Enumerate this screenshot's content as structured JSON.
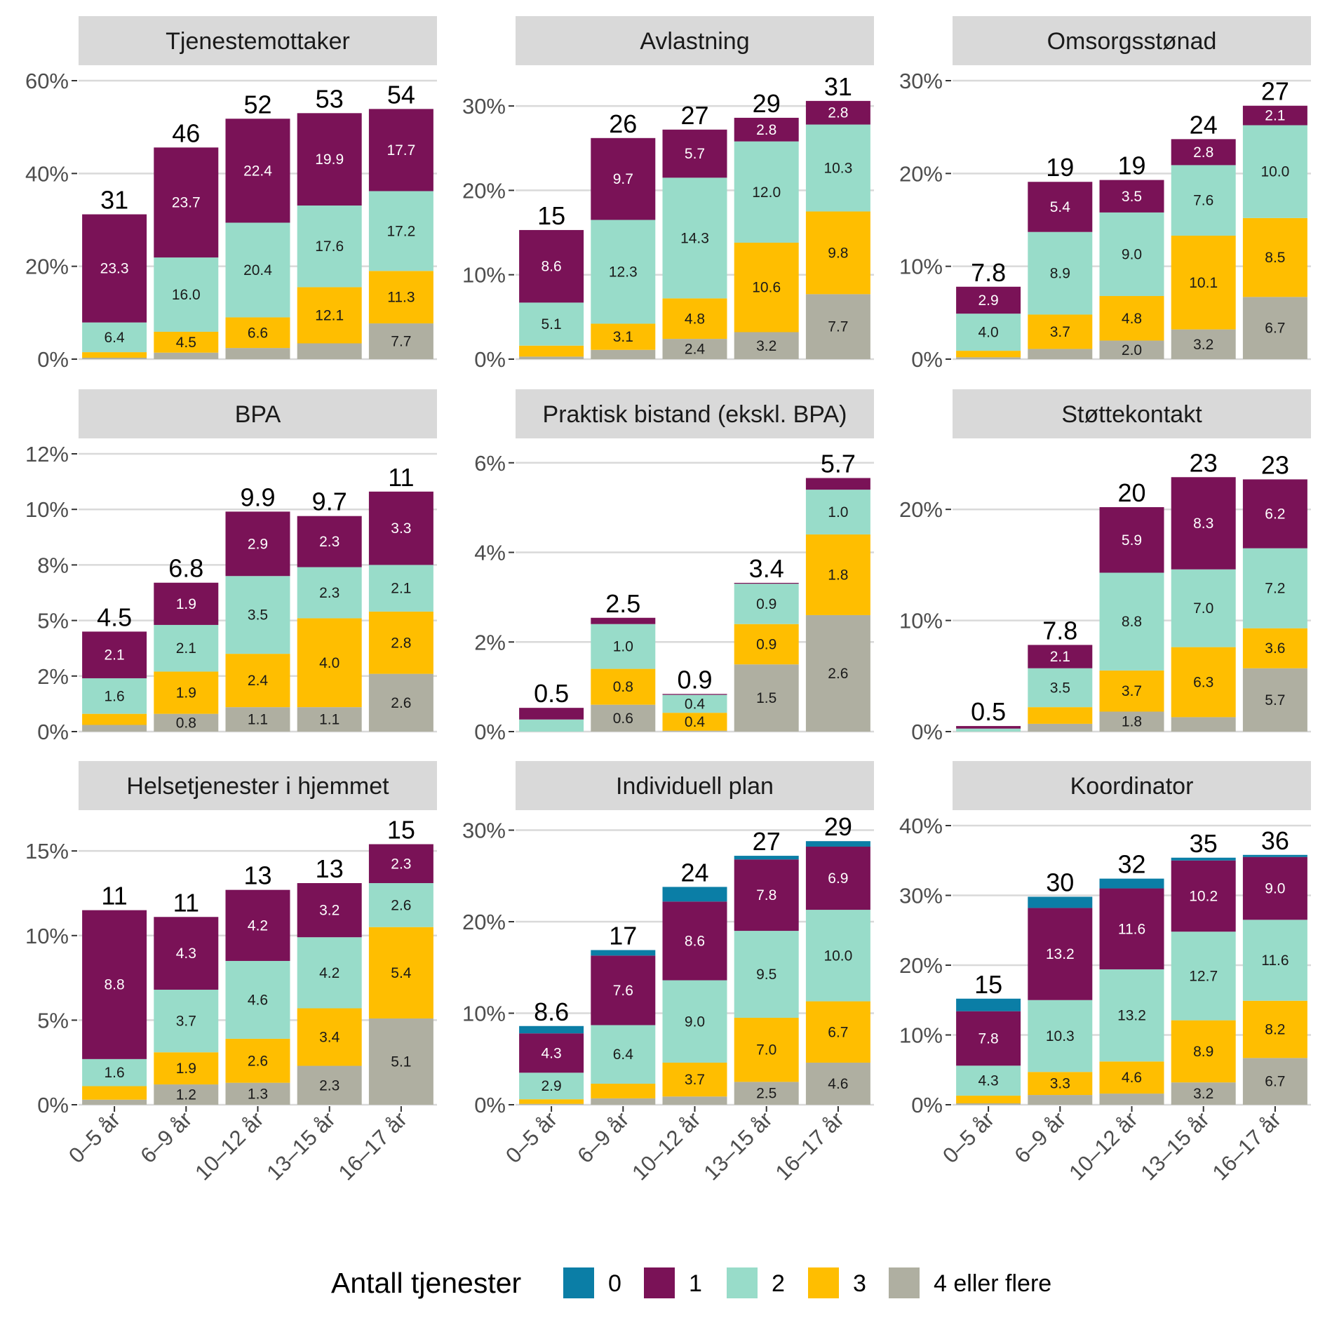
{
  "chart_data": {
    "type": "bar",
    "stacked": true,
    "categories": [
      "0–5 år",
      "6–9 år",
      "10–12 år",
      "13–15 år",
      "16–17 år"
    ],
    "stack_keys": [
      "4",
      "3",
      "2",
      "1",
      "0"
    ],
    "legend": {
      "title": "Antall tjenester",
      "position": "bottom",
      "items": [
        {
          "key": "0",
          "label": "0",
          "color": "#0b7ea6"
        },
        {
          "key": "1",
          "label": "1",
          "color": "#7a1257"
        },
        {
          "key": "2",
          "label": "2",
          "color": "#98dcc9"
        },
        {
          "key": "3",
          "label": "3",
          "color": "#ffbe00"
        },
        {
          "key": "4",
          "label": "4 eller flere",
          "color": "#afafa1"
        }
      ]
    },
    "panels": [
      {
        "title": "Tjenestemottaker",
        "ylim": [
          0,
          60
        ],
        "yticks": [
          0,
          20,
          40,
          60
        ],
        "ytick_labels": [
          "0%",
          "20%",
          "40%",
          "60%"
        ],
        "totals": [
          31,
          46,
          52,
          53,
          54
        ],
        "total_labels": [
          "31",
          "46",
          "52",
          "53",
          "54"
        ],
        "segments": [
          {
            "4": 0.3,
            "3": 1.2,
            "2": 6.4,
            "1": 23.3,
            "0": 0
          },
          {
            "4": 1.4,
            "3": 4.5,
            "2": 16.0,
            "1": 23.7,
            "0": 0
          },
          {
            "4": 2.4,
            "3": 6.6,
            "2": 20.4,
            "1": 22.4,
            "0": 0
          },
          {
            "4": 3.4,
            "3": 12.1,
            "2": 17.6,
            "1": 19.9,
            "0": 0
          },
          {
            "4": 7.7,
            "3": 11.3,
            "2": 17.2,
            "1": 17.7,
            "0": 0
          }
        ],
        "segment_labels": [
          {
            "4": "",
            "3": "",
            "2": "6.4",
            "1": "23.3",
            "0": ""
          },
          {
            "4": "",
            "3": "4.5",
            "2": "16.0",
            "1": "23.7",
            "0": ""
          },
          {
            "4": "",
            "3": "6.6",
            "2": "20.4",
            "1": "22.4",
            "0": ""
          },
          {
            "4": "",
            "3": "12.1",
            "2": "17.6",
            "1": "19.9",
            "0": ""
          },
          {
            "4": "7.7",
            "3": "11.3",
            "2": "17.2",
            "1": "17.7",
            "0": ""
          }
        ]
      },
      {
        "title": "Avlastning",
        "ylim": [
          0,
          33
        ],
        "yticks": [
          0,
          10,
          20,
          30
        ],
        "ytick_labels": [
          "0%",
          "10%",
          "20%",
          "30%"
        ],
        "totals": [
          15,
          26,
          27,
          29,
          31
        ],
        "total_labels": [
          "15",
          "26",
          "27",
          "29",
          "31"
        ],
        "segments": [
          {
            "4": 0.3,
            "3": 1.3,
            "2": 5.1,
            "1": 8.6,
            "0": 0
          },
          {
            "4": 1.1,
            "3": 3.1,
            "2": 12.3,
            "1": 9.7,
            "0": 0
          },
          {
            "4": 2.4,
            "3": 4.8,
            "2": 14.3,
            "1": 5.7,
            "0": 0
          },
          {
            "4": 3.2,
            "3": 10.6,
            "2": 12.0,
            "1": 2.8,
            "0": 0
          },
          {
            "4": 7.7,
            "3": 9.8,
            "2": 10.3,
            "1": 2.8,
            "0": 0
          }
        ],
        "segment_labels": [
          {
            "4": "",
            "3": "",
            "2": "5.1",
            "1": "8.6",
            "0": ""
          },
          {
            "4": "",
            "3": "3.1",
            "2": "12.3",
            "1": "9.7",
            "0": ""
          },
          {
            "4": "2.4",
            "3": "4.8",
            "2": "14.3",
            "1": "5.7",
            "0": ""
          },
          {
            "4": "3.2",
            "3": "10.6",
            "2": "12.0",
            "1": "2.8",
            "0": ""
          },
          {
            "4": "7.7",
            "3": "9.8",
            "2": "10.3",
            "1": "2.8",
            "0": ""
          }
        ]
      },
      {
        "title": "Omsorgsstønad",
        "ylim": [
          0,
          30
        ],
        "yticks": [
          0,
          10,
          20,
          30
        ],
        "ytick_labels": [
          "0%",
          "10%",
          "20%",
          "30%"
        ],
        "totals": [
          7.8,
          19,
          19,
          24,
          27
        ],
        "total_labels": [
          "7.8",
          "19",
          "19",
          "24",
          "27"
        ],
        "segments": [
          {
            "4": 0.2,
            "3": 0.7,
            "2": 4.0,
            "1": 2.9,
            "0": 0
          },
          {
            "4": 1.1,
            "3": 3.7,
            "2": 8.9,
            "1": 5.4,
            "0": 0
          },
          {
            "4": 2.0,
            "3": 4.8,
            "2": 9.0,
            "1": 3.5,
            "0": 0
          },
          {
            "4": 3.2,
            "3": 10.1,
            "2": 7.6,
            "1": 2.8,
            "0": 0
          },
          {
            "4": 6.7,
            "3": 8.5,
            "2": 10.0,
            "1": 2.1,
            "0": 0
          }
        ],
        "segment_labels": [
          {
            "4": "",
            "3": "",
            "2": "4.0",
            "1": "2.9",
            "0": ""
          },
          {
            "4": "",
            "3": "3.7",
            "2": "8.9",
            "1": "5.4",
            "0": ""
          },
          {
            "4": "2.0",
            "3": "4.8",
            "2": "9.0",
            "1": "3.5",
            "0": ""
          },
          {
            "4": "3.2",
            "3": "10.1",
            "2": "7.6",
            "1": "2.8",
            "0": ""
          },
          {
            "4": "6.7",
            "3": "8.5",
            "2": "10.0",
            "1": "2.1",
            "0": ""
          }
        ]
      },
      {
        "title": "BPA",
        "ylim": [
          0,
          12.5
        ],
        "yticks": [
          0,
          2.5,
          5,
          7.5,
          10,
          12.5
        ],
        "ytick_labels": [
          "0%",
          "2%",
          "5%",
          "8%",
          "10%",
          "12%"
        ],
        "totals": [
          4.5,
          6.8,
          9.9,
          9.7,
          11
        ],
        "total_labels": [
          "4.5",
          "6.8",
          "9.9",
          "9.7",
          "11"
        ],
        "segments": [
          {
            "4": 0.3,
            "3": 0.5,
            "2": 1.6,
            "1": 2.1,
            "0": 0
          },
          {
            "4": 0.8,
            "3": 1.9,
            "2": 2.1,
            "1": 1.9,
            "0": 0
          },
          {
            "4": 1.1,
            "3": 2.4,
            "2": 3.5,
            "1": 2.9,
            "0": 0
          },
          {
            "4": 1.1,
            "3": 4.0,
            "2": 2.3,
            "1": 2.3,
            "0": 0
          },
          {
            "4": 2.6,
            "3": 2.8,
            "2": 2.1,
            "1": 3.3,
            "0": 0
          }
        ],
        "segment_labels": [
          {
            "4": "",
            "3": "",
            "2": "1.6",
            "1": "2.1",
            "0": ""
          },
          {
            "4": "0.8",
            "3": "1.9",
            "2": "2.1",
            "1": "1.9",
            "0": ""
          },
          {
            "4": "1.1",
            "3": "2.4",
            "2": "3.5",
            "1": "2.9",
            "0": ""
          },
          {
            "4": "1.1",
            "3": "4.0",
            "2": "2.3",
            "1": "2.3",
            "0": ""
          },
          {
            "4": "2.6",
            "3": "2.8",
            "2": "2.1",
            "1": "3.3",
            "0": ""
          }
        ]
      },
      {
        "title": "Praktisk bistand (ekskl. BPA)",
        "ylim": [
          0,
          6.2
        ],
        "yticks": [
          0,
          2,
          4,
          6
        ],
        "ytick_labels": [
          "0%",
          "2%",
          "4%",
          "6%"
        ],
        "totals": [
          0.5,
          2.5,
          0.9,
          3.4,
          5.7
        ],
        "total_labels": [
          "0.5",
          "2.5",
          "0.9",
          "3.4",
          "5.7"
        ],
        "segments": [
          {
            "4": 0,
            "3": 0,
            "2": 0.27,
            "1": 0.26,
            "0": 0
          },
          {
            "4": 0.6,
            "3": 0.8,
            "2": 1.0,
            "1": 0.14,
            "0": 0
          },
          {
            "4": 0.02,
            "3": 0.4,
            "2": 0.4,
            "1": 0.02,
            "0": 0
          },
          {
            "4": 1.5,
            "3": 0.9,
            "2": 0.9,
            "1": 0.02,
            "0": 0
          },
          {
            "4": 2.6,
            "3": 1.8,
            "2": 1.0,
            "1": 0.26,
            "0": 0
          }
        ],
        "segment_labels": [
          {
            "4": "",
            "3": "",
            "2": "",
            "1": "",
            "0": ""
          },
          {
            "4": "0.6",
            "3": "0.8",
            "2": "1.0",
            "1": "",
            "0": ""
          },
          {
            "4": "",
            "3": "0.4",
            "2": "0.4",
            "1": "",
            "0": ""
          },
          {
            "4": "1.5",
            "3": "0.9",
            "2": "0.9",
            "1": "",
            "0": ""
          },
          {
            "4": "2.6",
            "3": "1.8",
            "2": "1.0",
            "1": "",
            "0": ""
          }
        ]
      },
      {
        "title": "Støttekontakt",
        "ylim": [
          0,
          25
        ],
        "yticks": [
          0,
          10,
          20
        ],
        "ytick_labels": [
          "0%",
          "10%",
          "20%"
        ],
        "totals": [
          0.5,
          7.8,
          20,
          23,
          23
        ],
        "total_labels": [
          "0.5",
          "7.8",
          "20",
          "23",
          "23"
        ],
        "segments": [
          {
            "4": 0,
            "3": 0,
            "2": 0.27,
            "1": 0.23,
            "0": 0
          },
          {
            "4": 0.7,
            "3": 1.5,
            "2": 3.5,
            "1": 2.1,
            "0": 0
          },
          {
            "4": 1.8,
            "3": 3.7,
            "2": 8.8,
            "1": 5.9,
            "0": 0
          },
          {
            "4": 1.3,
            "3": 6.3,
            "2": 7.0,
            "1": 8.3,
            "0": 0
          },
          {
            "4": 5.7,
            "3": 3.6,
            "2": 7.2,
            "1": 6.2,
            "0": 0
          }
        ],
        "segment_labels": [
          {
            "4": "",
            "3": "",
            "2": "",
            "1": "",
            "0": ""
          },
          {
            "4": "",
            "3": "",
            "2": "3.5",
            "1": "2.1",
            "0": ""
          },
          {
            "4": "1.8",
            "3": "3.7",
            "2": "8.8",
            "1": "5.9",
            "0": ""
          },
          {
            "4": "",
            "3": "6.3",
            "2": "7.0",
            "1": "8.3",
            "0": ""
          },
          {
            "4": "5.7",
            "3": "3.6",
            "2": "7.2",
            "1": "6.2",
            "0": ""
          }
        ]
      },
      {
        "title": "Helsetjenester i hjemmet",
        "ylim": [
          0,
          16.5
        ],
        "yticks": [
          0,
          5,
          10,
          15
        ],
        "ytick_labels": [
          "0%",
          "5%",
          "10%",
          "15%"
        ],
        "totals": [
          11,
          11,
          13,
          13,
          15
        ],
        "total_labels": [
          "11",
          "11",
          "13",
          "13",
          "15"
        ],
        "segments": [
          {
            "4": 0.3,
            "3": 0.8,
            "2": 1.6,
            "1": 8.8,
            "0": 0
          },
          {
            "4": 1.2,
            "3": 1.9,
            "2": 3.7,
            "1": 4.3,
            "0": 0
          },
          {
            "4": 1.3,
            "3": 2.6,
            "2": 4.6,
            "1": 4.2,
            "0": 0
          },
          {
            "4": 2.3,
            "3": 3.4,
            "2": 4.2,
            "1": 3.2,
            "0": 0
          },
          {
            "4": 5.1,
            "3": 5.4,
            "2": 2.6,
            "1": 2.3,
            "0": 0
          }
        ],
        "segment_labels": [
          {
            "4": "",
            "3": "",
            "2": "1.6",
            "1": "8.8",
            "0": ""
          },
          {
            "4": "1.2",
            "3": "1.9",
            "2": "3.7",
            "1": "4.3",
            "0": ""
          },
          {
            "4": "1.3",
            "3": "2.6",
            "2": "4.6",
            "1": "4.2",
            "0": ""
          },
          {
            "4": "2.3",
            "3": "3.4",
            "2": "4.2",
            "1": "3.2",
            "0": ""
          },
          {
            "4": "5.1",
            "3": "5.4",
            "2": "2.6",
            "1": "2.3",
            "0": ""
          }
        ]
      },
      {
        "title": "Individuell plan",
        "ylim": [
          0,
          30.5
        ],
        "yticks": [
          0,
          10,
          20,
          30
        ],
        "ytick_labels": [
          "0%",
          "10%",
          "20%",
          "30%"
        ],
        "totals": [
          8.6,
          17,
          24,
          27,
          29
        ],
        "total_labels": [
          "8.6",
          "17",
          "24",
          "27",
          "29"
        ],
        "segments": [
          {
            "4": 0.1,
            "3": 0.5,
            "2": 2.9,
            "1": 4.3,
            "0": 0.8
          },
          {
            "4": 0.7,
            "3": 1.6,
            "2": 6.4,
            "1": 7.6,
            "0": 0.6
          },
          {
            "4": 0.9,
            "3": 3.7,
            "2": 9.0,
            "1": 8.6,
            "0": 1.6
          },
          {
            "4": 2.5,
            "3": 7.0,
            "2": 9.5,
            "1": 7.8,
            "0": 0.4
          },
          {
            "4": 4.6,
            "3": 6.7,
            "2": 10.0,
            "1": 6.9,
            "0": 0.6
          }
        ],
        "segment_labels": [
          {
            "4": "",
            "3": "",
            "2": "2.9",
            "1": "4.3",
            "0": ""
          },
          {
            "4": "",
            "3": "",
            "2": "6.4",
            "1": "7.6",
            "0": ""
          },
          {
            "4": "",
            "3": "3.7",
            "2": "9.0",
            "1": "8.6",
            "0": ""
          },
          {
            "4": "2.5",
            "3": "7.0",
            "2": "9.5",
            "1": "7.8",
            "0": ""
          },
          {
            "4": "4.6",
            "3": "6.7",
            "2": "10.0",
            "1": "6.9",
            "0": ""
          }
        ]
      },
      {
        "title": "Koordinator",
        "ylim": [
          0,
          40
        ],
        "yticks": [
          0,
          10,
          20,
          30,
          40
        ],
        "ytick_labels": [
          "0%",
          "10%",
          "20%",
          "30%",
          "40%"
        ],
        "totals": [
          15,
          30,
          32,
          35,
          36
        ],
        "total_labels": [
          "15",
          "30",
          "32",
          "35",
          "36"
        ],
        "segments": [
          {
            "4": 0.2,
            "3": 1.1,
            "2": 4.3,
            "1": 7.8,
            "0": 1.8
          },
          {
            "4": 1.4,
            "3": 3.3,
            "2": 10.3,
            "1": 13.2,
            "0": 1.6
          },
          {
            "4": 1.6,
            "3": 4.6,
            "2": 13.2,
            "1": 11.6,
            "0": 1.4
          },
          {
            "4": 3.2,
            "3": 8.9,
            "2": 12.7,
            "1": 10.2,
            "0": 0.4
          },
          {
            "4": 6.7,
            "3": 8.2,
            "2": 11.6,
            "1": 9.0,
            "0": 0.3
          }
        ],
        "segment_labels": [
          {
            "4": "",
            "3": "",
            "2": "4.3",
            "1": "7.8",
            "0": ""
          },
          {
            "4": "",
            "3": "3.3",
            "2": "10.3",
            "1": "13.2",
            "0": ""
          },
          {
            "4": "",
            "3": "4.6",
            "2": "13.2",
            "1": "11.6",
            "0": ""
          },
          {
            "4": "3.2",
            "3": "8.9",
            "2": "12.7",
            "1": "10.2",
            "0": ""
          },
          {
            "4": "6.7",
            "3": "8.2",
            "2": "11.6",
            "1": "9.0",
            "0": ""
          }
        ]
      }
    ]
  }
}
